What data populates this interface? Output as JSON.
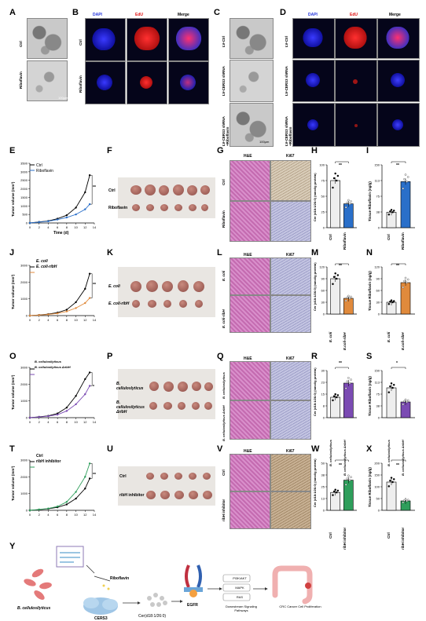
{
  "panels": {
    "A": {
      "letter": "A",
      "rows": [
        "Ctrl",
        "Riboflavin"
      ],
      "scale": "100µm"
    },
    "B": {
      "letter": "B",
      "cols": [
        "DAPI",
        "EdU",
        "Merge"
      ],
      "rows": [
        "Ctrl",
        "Riboflavin"
      ]
    },
    "C": {
      "letter": "C",
      "rows": [
        "LV-Ctrl",
        "LV-CERS3 shRNA",
        "LV-CERS3 shRNA +Riboflavin"
      ],
      "scale": "100µm"
    },
    "D": {
      "letter": "D",
      "cols": [
        "DAPI",
        "EdU",
        "Merge"
      ],
      "rows": [
        "LV-Ctrl",
        "LV-CERS3 shRNA",
        "LV-CERS3 shRNA +Riboflavin"
      ]
    },
    "E": {
      "letter": "E",
      "legend": [
        "Ctrl",
        "Riboflavin"
      ],
      "ylabel": "Tumor volume (mm³)",
      "xlabel": "Time (d)",
      "yticks": [
        "0",
        "500",
        "1000",
        "1500",
        "2000",
        "2500",
        "3000",
        "3500"
      ],
      "xticks": [
        "0",
        "2",
        "4",
        "6",
        "8",
        "10",
        "12",
        "14"
      ],
      "sig": "**"
    },
    "F": {
      "letter": "F",
      "rows": [
        "Ctrl",
        "Riboflavin"
      ]
    },
    "G": {
      "letter": "G",
      "cols": [
        "H&E",
        "Ki67"
      ],
      "rows": [
        "Ctrl",
        "Riboflavin"
      ]
    },
    "H": {
      "letter": "H",
      "ylabel": "Cer (d18:1/26:0) (nmol/g protein)",
      "cats": [
        "Ctrl",
        "Riboflavin"
      ],
      "sig": "**"
    },
    "I": {
      "letter": "I",
      "ylabel": "Tissue Riboflavin (ng/g)",
      "cats": [
        "Ctrl",
        "Riboflavin"
      ],
      "sig": "**"
    },
    "J": {
      "letter": "J",
      "legend": [
        "E. coli",
        "E. coli-ribH"
      ],
      "ylabel": "Tumor volume (mm³)",
      "xlabel": "",
      "yticks": [
        "0",
        "1000",
        "2000",
        "3000"
      ],
      "xticks": [
        "0",
        "2",
        "4",
        "6",
        "8",
        "10",
        "12",
        "14"
      ],
      "sig": "**"
    },
    "K": {
      "letter": "K",
      "rows": [
        "E. coli",
        "E. coli-ribH"
      ]
    },
    "L": {
      "letter": "L",
      "cols": [
        "H&E",
        "Ki67"
      ],
      "rows": [
        "E. coli",
        "E. coli-ribH"
      ]
    },
    "M": {
      "letter": "M",
      "ylabel": "Cer (d18:1/26:0) (nmol/g protein)",
      "cats": [
        "E. coli",
        "E.coli-ribH"
      ],
      "sig": "**"
    },
    "N": {
      "letter": "N",
      "ylabel": "Tissue Riboflavin (ng/g)",
      "cats": [
        "E. coli",
        "E.coli-ribH"
      ],
      "sig": "**"
    },
    "O": {
      "letter": "O",
      "legend": [
        "B. cellulosilyticus",
        "B. cellulosilyticus ΔribH"
      ],
      "ylabel": "Tumor volume (mm³)",
      "xlabel": "",
      "yticks": [
        "0",
        "1000",
        "2000",
        "3000"
      ],
      "xticks": [
        "0",
        "2",
        "4",
        "6",
        "8",
        "10",
        "12",
        "14"
      ],
      "sig": "*"
    },
    "P": {
      "letter": "P",
      "rows": [
        "B. celluloslyticus",
        "B. cellulosilyticus ΔribH"
      ]
    },
    "Q": {
      "letter": "Q",
      "cols": [
        "H&E",
        "Ki67"
      ],
      "rows": [
        "B. cellulosilyticus",
        "B. cellulosilyticus ΔribH"
      ]
    },
    "R": {
      "letter": "R",
      "ylabel": "Cer (d18:1/26:0) (nmol/g protein)",
      "cats": [
        "B. cellulosilyticus",
        "B. cellulosilyticus ΔribH"
      ],
      "sig": "**"
    },
    "S": {
      "letter": "S",
      "ylabel": "Tissue Riboflavin (ng/g)",
      "cats": [
        "B. cellulosilyticus",
        "B. cellulosilyticus ΔribH"
      ],
      "sig": "*"
    },
    "T": {
      "letter": "T",
      "legend": [
        "Ctrl",
        "ribH inhibitor"
      ],
      "ylabel": "Tumor volume (mm³)",
      "xlabel": "",
      "yticks": [
        "0",
        "1000",
        "2000",
        "3000"
      ],
      "xticks": [
        "0",
        "2",
        "4",
        "6",
        "8",
        "10",
        "12",
        "14"
      ],
      "sig": "**"
    },
    "U": {
      "letter": "U",
      "rows": [
        "Ctrl",
        "ribH inhibitor"
      ]
    },
    "V": {
      "letter": "V",
      "cols": [
        "H&E",
        "Ki67"
      ],
      "rows": [
        "Ctrl",
        "ribH inhibitor"
      ]
    },
    "W": {
      "letter": "W",
      "ylabel": "Cer (d18:1/26:0) (nmol/g protein)",
      "cats": [
        "Ctrl",
        "ribH inhibitor"
      ],
      "sig": "**"
    },
    "X": {
      "letter": "X",
      "ylabel": "Tissue Riboflavin (ng/g)",
      "cats": [
        "Ctrl",
        "ribH inhibitor"
      ],
      "sig": "**"
    },
    "Y": {
      "letter": "Y",
      "bacterium": "B. cellulosilyticus",
      "riboflavin": "Riboflavin",
      "cers3": "CERS3",
      "cer": "Cer(d18:1/26:0)",
      "egfr": "EGFR",
      "pathways": [
        "PI3K/AKT",
        "MAPK",
        "RAS"
      ],
      "downstream": "Downstream Signaling Pathways",
      "outcome": "CRC Cancer Cell Proliferation"
    }
  },
  "colors": {
    "ctrl": "#000000",
    "treat_blue": "#2a6fc9",
    "treat_orange": "#e08a3c",
    "treat_purple": "#7b4bb3",
    "treat_green": "#2e9e5b",
    "bar_gray": "#eeeeee"
  },
  "chart_data": [
    {
      "type": "line",
      "panel": "E",
      "x": [
        0,
        2,
        4,
        6,
        8,
        10,
        12,
        13
      ],
      "series": [
        {
          "name": "Ctrl",
          "values": [
            0,
            60,
            120,
            250,
            450,
            900,
            1800,
            2800
          ]
        },
        {
          "name": "Riboflavin",
          "values": [
            0,
            50,
            100,
            200,
            320,
            500,
            800,
            1100
          ]
        }
      ],
      "ylim": [
        0,
        3500
      ],
      "xlabel": "Time (d)",
      "ylabel": "Tumor volume (mm³)"
    },
    {
      "type": "bar",
      "panel": "H",
      "categories": [
        "Ctrl",
        "Riboflavin"
      ],
      "values": [
        75,
        38
      ],
      "ylim": [
        0,
        100
      ]
    },
    {
      "type": "bar",
      "panel": "I",
      "categories": [
        "Ctrl",
        "Riboflavin"
      ],
      "values": [
        37,
        110
      ],
      "ylim": [
        0,
        150
      ]
    },
    {
      "type": "line",
      "panel": "J",
      "x": [
        0,
        2,
        4,
        6,
        8,
        10,
        12,
        13
      ],
      "series": [
        {
          "name": "E. coli",
          "values": [
            0,
            40,
            90,
            180,
            350,
            800,
            1600,
            2500
          ]
        },
        {
          "name": "E. coli-ribH",
          "values": [
            0,
            30,
            70,
            130,
            250,
            450,
            750,
            1050
          ]
        }
      ],
      "ylim": [
        0,
        3000
      ],
      "ylabel": "Tumor volume (mm³)"
    },
    {
      "type": "bar",
      "panel": "M",
      "categories": [
        "E. coli",
        "E.coli-ribH"
      ],
      "values": [
        90,
        40
      ],
      "ylim": [
        0,
        120
      ]
    },
    {
      "type": "bar",
      "panel": "N",
      "categories": [
        "E. coli",
        "E.coli-ribH"
      ],
      "values": [
        30,
        80
      ],
      "ylim": [
        0,
        120
      ]
    },
    {
      "type": "line",
      "panel": "O",
      "x": [
        0,
        2,
        4,
        6,
        8,
        10,
        12,
        13
      ],
      "series": [
        {
          "name": "B. cellulosilyticus",
          "values": [
            0,
            50,
            110,
            250,
            600,
            1300,
            2300,
            2700
          ]
        },
        {
          "name": "B. cellulosilyticus ΔribH",
          "values": [
            0,
            40,
            90,
            180,
            400,
            800,
            1400,
            1900
          ]
        }
      ],
      "ylim": [
        0,
        3000
      ],
      "ylabel": "Tumor volume (mm³)"
    },
    {
      "type": "bar",
      "panel": "R",
      "categories": [
        "B. cellulosilyticus",
        "B. cellulosilyticus ΔribH"
      ],
      "values": [
        13,
        22
      ],
      "ylim": [
        0,
        30
      ]
    },
    {
      "type": "bar",
      "panel": "S",
      "categories": [
        "B. cellulosilyticus",
        "B. cellulosilyticus ΔribH"
      ],
      "values": [
        95,
        50
      ],
      "ylim": [
        0,
        150
      ]
    },
    {
      "type": "line",
      "panel": "T",
      "x": [
        0,
        2,
        4,
        6,
        8,
        10,
        12,
        13
      ],
      "series": [
        {
          "name": "Ctrl",
          "values": [
            0,
            40,
            90,
            180,
            350,
            700,
            1300,
            1900
          ]
        },
        {
          "name": "ribH inhibitor",
          "values": [
            0,
            50,
            110,
            230,
            500,
            1100,
            2000,
            2800
          ]
        }
      ],
      "ylim": [
        0,
        3000
      ],
      "ylabel": "Tumor volume (mm³)"
    },
    {
      "type": "bar",
      "panel": "W",
      "categories": [
        "Ctrl",
        "ribH inhibitor"
      ],
      "values": [
        19,
        32
      ],
      "ylim": [
        0,
        50
      ]
    },
    {
      "type": "bar",
      "panel": "X",
      "categories": [
        "Ctrl",
        "ribH inhibitor"
      ],
      "values": [
        120,
        40
      ],
      "ylim": [
        0,
        200
      ]
    }
  ]
}
